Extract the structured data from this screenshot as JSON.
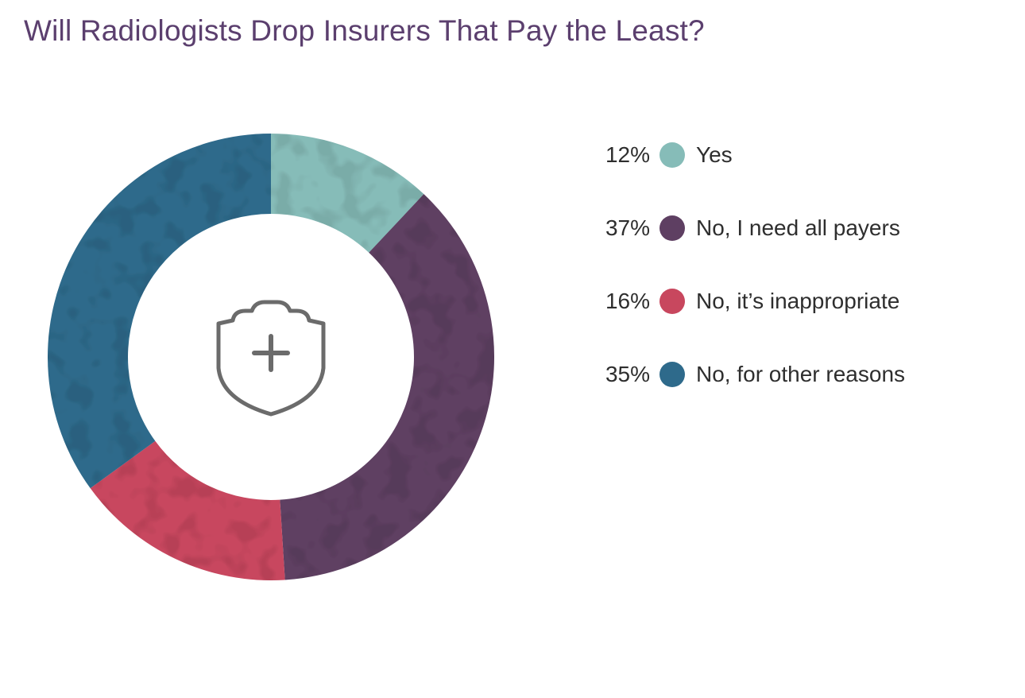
{
  "chart_data": {
    "type": "pie",
    "title": "Will Radiologists Drop Insurers That Pay the Least?",
    "categories": [
      "Yes",
      "No, I need all payers",
      "No, it’s inappropriate",
      "No, for other reasons"
    ],
    "values": [
      12,
      37,
      16,
      35
    ],
    "value_labels": [
      "12%",
      "37%",
      "16%",
      "35%"
    ],
    "colors": [
      "#86bcb8",
      "#5e3f62",
      "#c8475e",
      "#2e6a8b"
    ],
    "legend_position": "right"
  },
  "icons": {
    "center": "shield-plus-icon"
  }
}
